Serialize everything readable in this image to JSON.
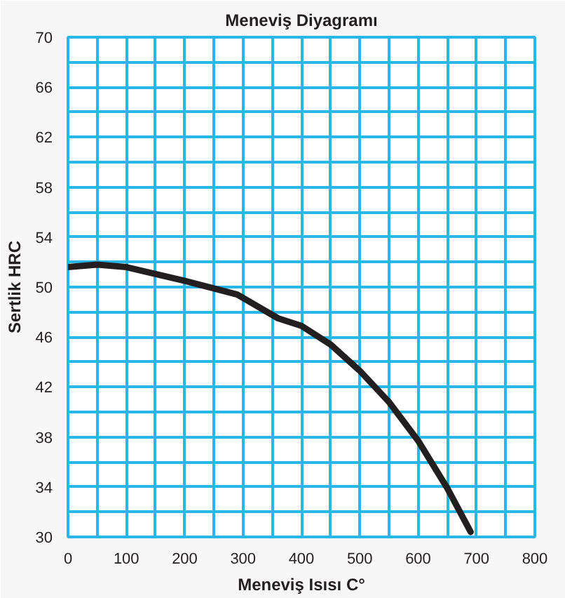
{
  "chart_data": {
    "type": "line",
    "title": "Meneviş Diyagramı",
    "xlabel": "Meneviş Isısı C°",
    "ylabel": "Sertlik HRC",
    "x": [
      0,
      50,
      100,
      200,
      290,
      360,
      400,
      450,
      500,
      550,
      600,
      650,
      690
    ],
    "series": [
      {
        "color": "#231f20",
        "values": [
          51.6,
          51.8,
          51.6,
          50.5,
          49.4,
          47.5,
          46.9,
          45.4,
          43.3,
          40.8,
          37.7,
          33.9,
          30.4
        ]
      }
    ],
    "xlim": [
      0,
      800
    ],
    "ylim": [
      30,
      70
    ],
    "xticks": [
      0,
      100,
      200,
      300,
      400,
      500,
      600,
      700,
      800
    ],
    "yticks": [
      30,
      34,
      38,
      42,
      46,
      50,
      54,
      58,
      62,
      66,
      70
    ],
    "grid": true,
    "marker": "none",
    "line_style": "solid"
  }
}
